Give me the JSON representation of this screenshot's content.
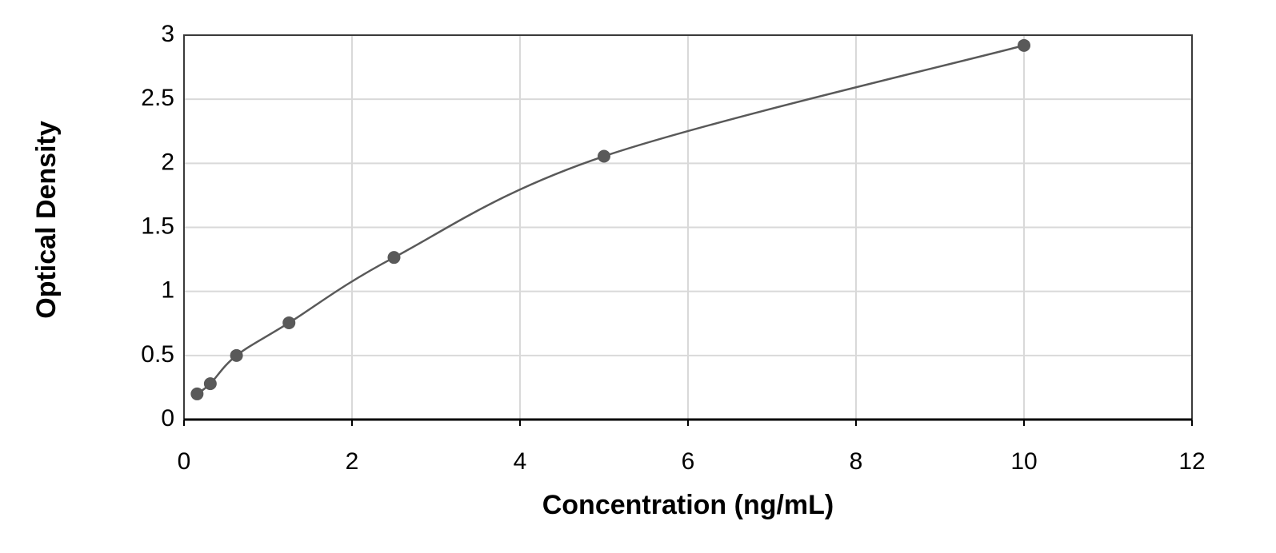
{
  "chart_data": {
    "type": "scatter",
    "x_label": "Concentration (ng/mL)",
    "y_label": "Optical Density",
    "x": [
      0.156,
      0.313,
      0.625,
      1.25,
      2.5,
      5,
      10
    ],
    "values": [
      0.2,
      0.28,
      0.5,
      0.755,
      1.265,
      2.055,
      2.92
    ],
    "color": "#595959",
    "fit_line": true,
    "xlim": [
      0,
      12
    ],
    "xticks": [
      0,
      2,
      4,
      6,
      8,
      10,
      12
    ],
    "ylim": [
      0,
      3
    ],
    "yticks": [
      0,
      0.5,
      1,
      1.5,
      2,
      2.5,
      3
    ],
    "grid": true
  }
}
